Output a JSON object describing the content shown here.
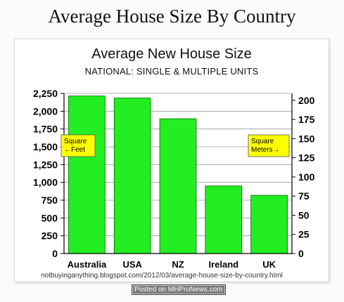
{
  "page": {
    "title": "Average House Size By Country",
    "source": "notbuyinganything.blogspot.com/2012/03/average-house-size-by-country.html",
    "posted_badge": "Posted on MHProNews.com"
  },
  "chart_data": {
    "type": "bar",
    "title": "Average New House Size",
    "subtitle": "NATIONAL: SINGLE & MULTIPLE UNITS",
    "categories": [
      "Australia",
      "USA",
      "NZ",
      "Ireland",
      "UK"
    ],
    "series": [
      {
        "values": [
          2214,
          2185,
          1894,
          950,
          818
        ]
      }
    ],
    "left_axis": {
      "label": "Square ←Feet",
      "ylim": [
        0,
        2250
      ],
      "ticks": [
        "0",
        "250",
        "500",
        "750",
        "1,000",
        "1,250",
        "1,500",
        "1,750",
        "2,000",
        "2,250"
      ]
    },
    "right_axis": {
      "label": "Square Meters→",
      "ylim": [
        0,
        209
      ],
      "ticks": [
        "0",
        "25",
        "50",
        "75",
        "100",
        "125",
        "150",
        "175",
        "200"
      ]
    },
    "grid": true,
    "colors": {
      "bar": "#22ee22",
      "bar_edge": "#006600",
      "label_box": "#ffff00"
    }
  }
}
